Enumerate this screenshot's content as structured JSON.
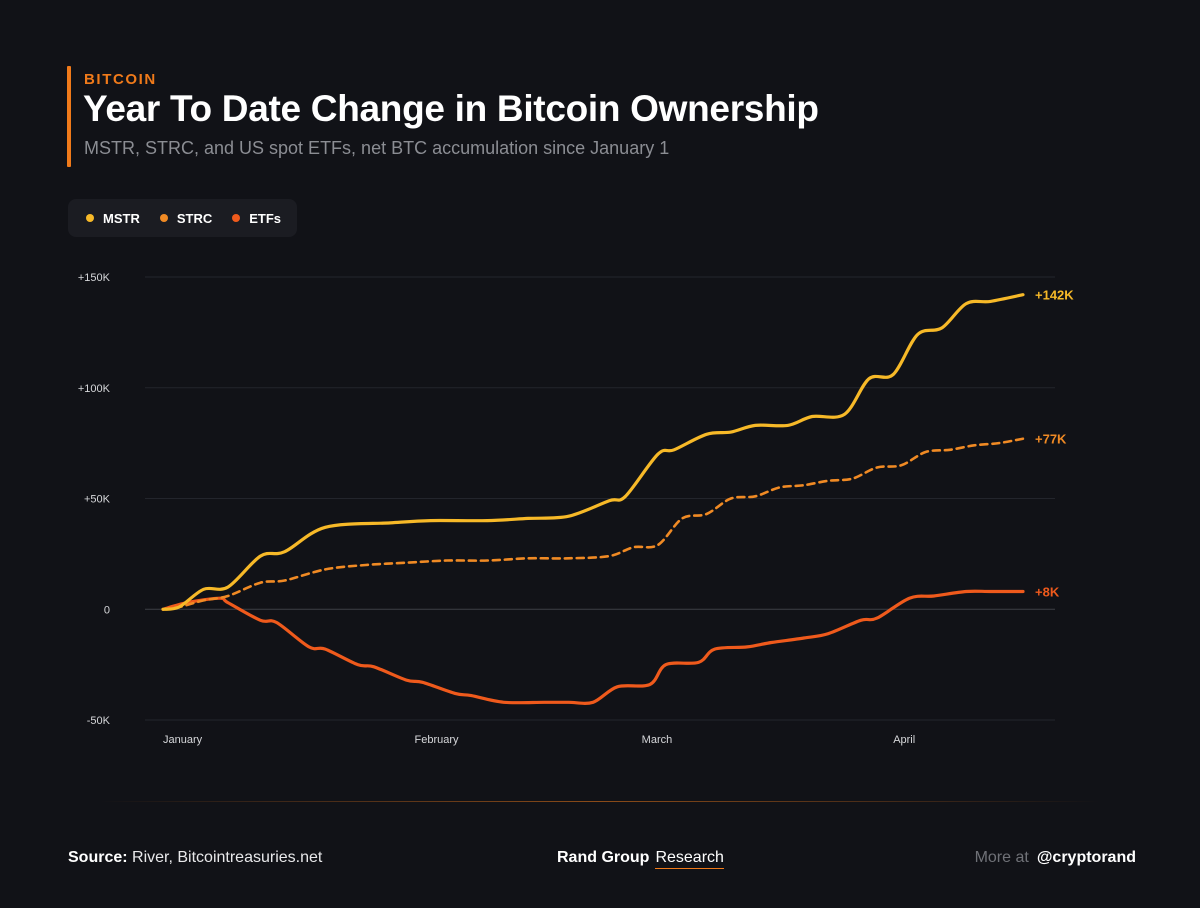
{
  "header": {
    "eyebrow": "BITCOIN",
    "title": "Year To Date Change in Bitcoin Ownership",
    "subtitle": "MSTR, STRC, and US spot ETFs, net BTC accumulation since January 1"
  },
  "legend": {
    "items": [
      {
        "label": "MSTR",
        "color": "#f7b928"
      },
      {
        "label": "STRC",
        "color": "#f08a24"
      },
      {
        "label": "ETFs",
        "color": "#ef5a1c"
      }
    ]
  },
  "chart_data": {
    "type": "line",
    "title": "Year To Date Change in Bitcoin Ownership",
    "xlabel": "",
    "ylabel": "",
    "ylim": [
      -50000,
      150000
    ],
    "xlim": [
      0,
      106
    ],
    "y_ticks": [
      {
        "value": 150000,
        "label": "+150K"
      },
      {
        "value": 100000,
        "label": "+100K"
      },
      {
        "value": 50000,
        "label": "+50K"
      },
      {
        "value": 0,
        "label": "0"
      },
      {
        "value": -50000,
        "label": "-50K"
      }
    ],
    "x_ticks": [
      {
        "value": 0,
        "label": "January"
      },
      {
        "value": 31,
        "label": "February"
      },
      {
        "value": 59,
        "label": "March"
      },
      {
        "value": 90,
        "label": "April"
      }
    ],
    "grid": true,
    "series": [
      {
        "name": "MSTR",
        "color": "#f7b928",
        "style": "solid",
        "end_label": "+142K",
        "x": [
          0,
          2,
          5,
          8,
          12,
          15,
          20,
          28,
          33,
          40,
          45,
          50,
          55,
          57,
          61,
          63,
          67,
          70,
          73,
          77,
          80,
          84,
          87,
          90,
          93,
          96,
          99,
          102,
          106
        ],
        "values": [
          0,
          1000,
          9000,
          10000,
          24000,
          26000,
          37000,
          39000,
          40000,
          40000,
          41000,
          42000,
          49000,
          51000,
          70000,
          72000,
          79000,
          80000,
          83000,
          83000,
          87000,
          88000,
          104000,
          106000,
          124000,
          127000,
          138000,
          139000,
          142000
        ]
      },
      {
        "name": "STRC",
        "color": "#f08a24",
        "style": "dashed",
        "end_label": "+77K",
        "x": [
          0,
          2,
          5,
          8,
          12,
          15,
          20,
          25,
          30,
          35,
          40,
          45,
          50,
          55,
          58,
          61,
          64,
          67,
          70,
          73,
          76,
          79,
          82,
          85,
          88,
          91,
          94,
          97,
          100,
          103,
          106
        ],
        "values": [
          0,
          1000,
          4000,
          6000,
          12000,
          13000,
          18000,
          20000,
          21000,
          22000,
          22000,
          23000,
          23000,
          24000,
          28000,
          29000,
          41000,
          43000,
          50000,
          51000,
          55000,
          56000,
          58000,
          59000,
          64000,
          65000,
          71000,
          72000,
          74000,
          75000,
          77000
        ]
      },
      {
        "name": "ETFs",
        "color": "#ef5a1c",
        "style": "solid",
        "end_label": "+8K",
        "x": [
          0,
          3,
          7,
          8,
          12,
          14,
          18,
          20,
          24,
          26,
          30,
          32,
          36,
          38,
          42,
          47,
          50,
          53,
          56,
          60,
          62,
          66,
          68,
          72,
          75,
          79,
          82,
          86,
          88,
          92,
          95,
          99,
          102,
          106
        ],
        "values": [
          0,
          3000,
          5000,
          3000,
          -5000,
          -6000,
          -17000,
          -18000,
          -25000,
          -26000,
          -32000,
          -33000,
          -38000,
          -39000,
          -42000,
          -42000,
          -42000,
          -42000,
          -35000,
          -34000,
          -25000,
          -24000,
          -18000,
          -17000,
          -15000,
          -13000,
          -11000,
          -5000,
          -4000,
          5000,
          6000,
          8000,
          8000,
          8000
        ]
      }
    ]
  },
  "footer": {
    "source_label": "Source:",
    "source_text": "River, Bitcointreasuries.net",
    "brand_name": "Rand Group",
    "brand_tag": "Research",
    "more_label": "More at",
    "handle": "@cryptorand"
  }
}
